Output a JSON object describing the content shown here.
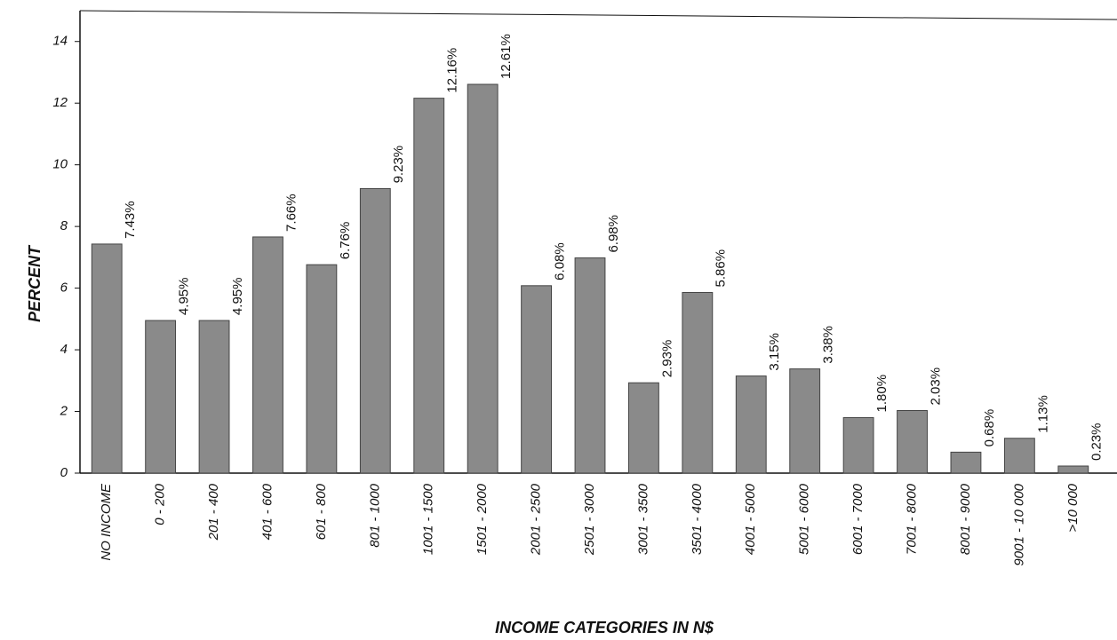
{
  "chart_data": {
    "type": "bar",
    "x_label": "INCOME CATEGORIES IN N$",
    "y_label": "PERCENT",
    "categories": [
      "NO INCOME",
      "0 - 200",
      "201 - 400",
      "401 - 600",
      "601 - 800",
      "801 - 1000",
      "1001 - 1500",
      "1501 - 2000",
      "2001 - 2500",
      "2501 - 3000",
      "3001 - 3500",
      "3501 - 4000",
      "4001 - 5000",
      "5001 - 6000",
      "6001 - 7000",
      "7001 - 8000",
      "8001 - 9000",
      "9001 - 10 000",
      ">10 000"
    ],
    "values": [
      7.43,
      4.95,
      4.95,
      7.66,
      6.76,
      9.23,
      12.16,
      12.61,
      6.08,
      6.98,
      2.93,
      5.86,
      3.15,
      3.38,
      1.8,
      2.03,
      0.68,
      1.13,
      0.23
    ],
    "value_labels": [
      "7.43%",
      "4.95%",
      "4.95%",
      "7.66%",
      "6.76%",
      "9.23%",
      "12.16%",
      "12.61%",
      "6.08%",
      "6.98%",
      "2.93%",
      "5.86%",
      "3.15%",
      "3.38%",
      "1.80%",
      "2.03%",
      "0.68%",
      "1.13%",
      "0.23%"
    ],
    "color": "#8a8a8a",
    "ylim": [
      0,
      15
    ],
    "yticks": [
      0,
      2,
      4,
      6,
      8,
      10,
      12,
      14
    ]
  }
}
